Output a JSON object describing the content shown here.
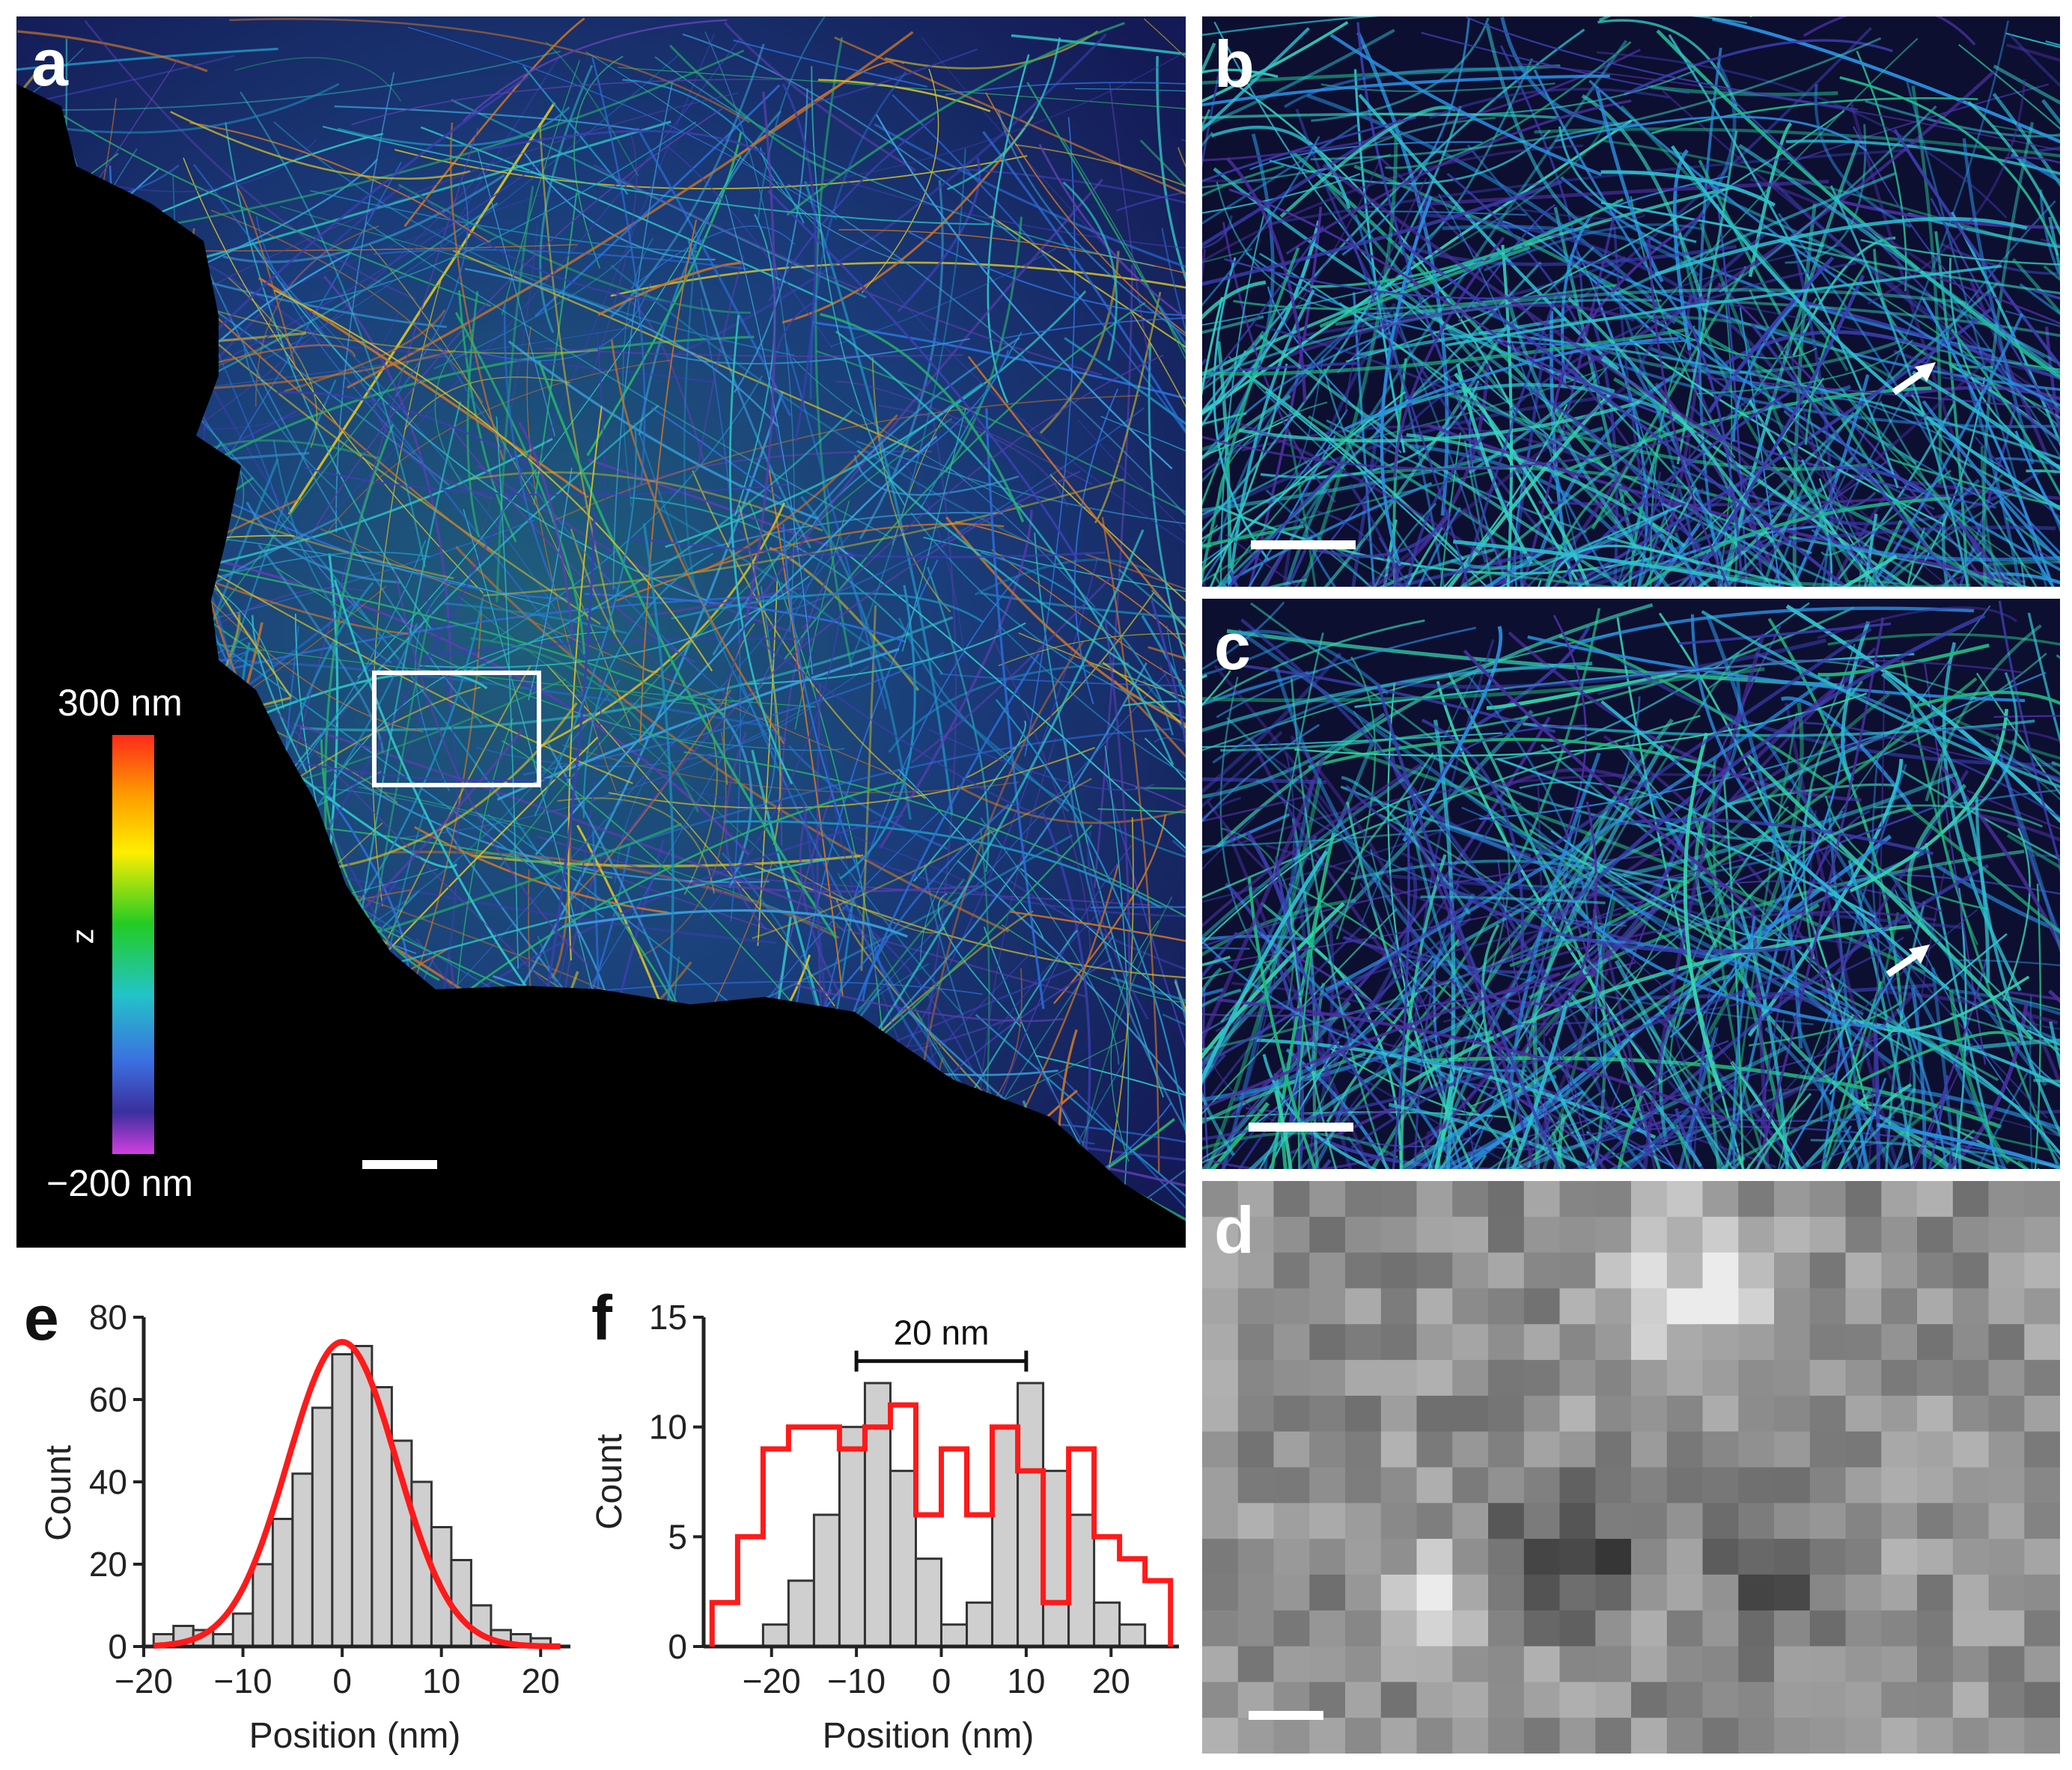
{
  "panels": {
    "a": {
      "label": "a"
    },
    "b": {
      "label": "b"
    },
    "c": {
      "label": "c"
    },
    "d": {
      "label": "d"
    },
    "e": {
      "label": "e"
    },
    "f": {
      "label": "f"
    }
  },
  "colorbar": {
    "top_label": "300 nm",
    "bottom_label": "−200 nm",
    "axis_label": "z"
  },
  "colors": {
    "fit_curve": "#ff1a1a",
    "bar_fill": "#cfcfcf",
    "bar_edge": "#333333",
    "colorbar_stops": [
      "#ff2a1a",
      "#ff9a00",
      "#ffee00",
      "#22cc22",
      "#22c4c8",
      "#3b6fe0",
      "#3b2f9e",
      "#d23fe0"
    ]
  },
  "chart_data": [
    {
      "id": "e",
      "type": "bar",
      "xlabel": "Position (nm)",
      "ylabel": "Count",
      "xlim": [
        -20,
        23
      ],
      "ylim": [
        0,
        80
      ],
      "xticks": [
        "−20",
        "−10",
        "0",
        "10",
        "20"
      ],
      "xtick_values": [
        -20,
        -10,
        0,
        10,
        20
      ],
      "yticks": [
        "0",
        "20",
        "40",
        "60",
        "80"
      ],
      "ytick_values": [
        0,
        20,
        40,
        60,
        80
      ],
      "bin_width": 2,
      "bin_starts": [
        -19,
        -17,
        -15,
        -13,
        -11,
        -9,
        -7,
        -5,
        -3,
        -1,
        1,
        3,
        5,
        7,
        9,
        11,
        13,
        15,
        17,
        19
      ],
      "values": [
        3,
        5,
        4,
        3,
        8,
        20,
        31,
        42,
        58,
        71,
        73,
        63,
        50,
        40,
        29,
        21,
        10,
        4,
        3,
        2
      ],
      "fit": {
        "type": "gaussian",
        "amplitude": 74,
        "mean": 0,
        "sigma": 5.5
      }
    },
    {
      "id": "f",
      "type": "bar",
      "xlabel": "Position (nm)",
      "ylabel": "Count",
      "xlim": [
        -28,
        28
      ],
      "ylim": [
        0,
        15
      ],
      "xticks": [
        "−20",
        "−10",
        "0",
        "10",
        "20"
      ],
      "xtick_values": [
        -20,
        -10,
        0,
        10,
        20
      ],
      "yticks": [
        "0",
        "5",
        "10",
        "15"
      ],
      "ytick_values": [
        0,
        5,
        10,
        15
      ],
      "annotation": {
        "text": "20 nm",
        "x_start": -10,
        "x_end": 10,
        "y": 13
      },
      "bin_width": 3,
      "bin_starts": [
        -21,
        -18,
        -15,
        -12,
        -9,
        -6,
        -3,
        0,
        3,
        6,
        9,
        12,
        15,
        18,
        21
      ],
      "series": [
        {
          "values": [
            1,
            3,
            6,
            10,
            12,
            8,
            4,
            1,
            2,
            10,
            12,
            8,
            6,
            2,
            1
          ]
        },
        {
          "step_x": [
            -27,
            -24,
            -21,
            -18,
            -15,
            -12,
            -9,
            -6,
            -3,
            0,
            3,
            6,
            9,
            12,
            15,
            18,
            21,
            24,
            27
          ],
          "step_y": [
            2,
            5,
            9,
            10,
            10,
            9,
            10,
            11,
            6,
            9,
            6,
            10,
            8,
            2,
            9,
            5,
            4,
            3,
            0
          ]
        }
      ]
    }
  ]
}
